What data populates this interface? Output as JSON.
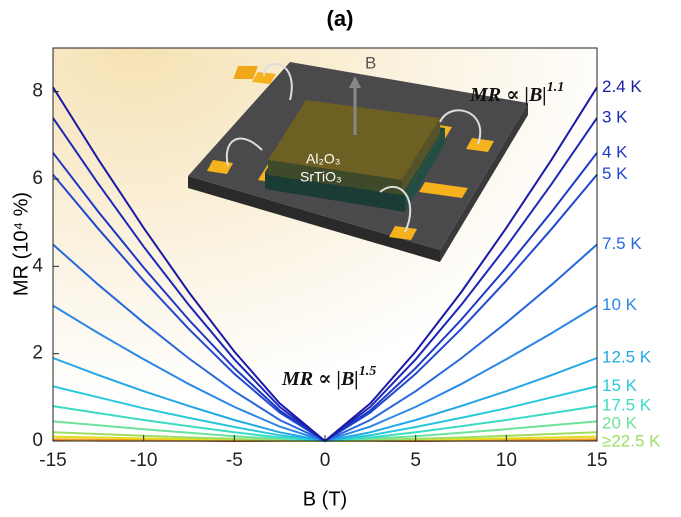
{
  "chart_data": {
    "type": "line",
    "title": "(a)",
    "xlabel": "B (T)",
    "ylabel": "MR (10⁴ %)",
    "x": [
      -15,
      -12.5,
      -10,
      -7.5,
      -5,
      -2.5,
      0,
      2.5,
      5,
      7.5,
      10,
      12.5,
      15
    ],
    "xlim": [
      -15,
      15
    ],
    "xticks": [
      -15,
      -10,
      -5,
      0,
      5,
      10,
      15
    ],
    "ylim": [
      0,
      9
    ],
    "yticks": [
      0,
      2,
      4,
      6,
      8
    ],
    "series": [
      {
        "name": "2.4 K",
        "color": "#1b1aa6",
        "values": [
          8.1,
          6.45,
          4.88,
          3.4,
          2.05,
          0.86,
          0,
          0.86,
          2.05,
          3.4,
          4.88,
          6.45,
          8.1
        ]
      },
      {
        "name": "3 K",
        "color": "#1c28b8",
        "values": [
          7.4,
          5.89,
          4.45,
          3.11,
          1.87,
          0.78,
          0,
          0.78,
          1.87,
          3.11,
          4.45,
          5.89,
          7.4
        ]
      },
      {
        "name": "4 K",
        "color": "#1e38c6",
        "values": [
          6.6,
          5.25,
          3.97,
          2.77,
          1.67,
          0.7,
          0,
          0.7,
          1.67,
          2.77,
          3.97,
          5.25,
          6.6
        ]
      },
      {
        "name": "5 K",
        "color": "#2148d0",
        "values": [
          6.1,
          4.86,
          3.67,
          2.56,
          1.54,
          0.65,
          0,
          0.65,
          1.54,
          2.56,
          3.67,
          4.86,
          6.1
        ]
      },
      {
        "name": "7.5 K",
        "color": "#2868dc",
        "values": [
          4.5,
          3.58,
          2.71,
          1.89,
          1.14,
          0.48,
          0,
          0.48,
          1.14,
          1.89,
          2.71,
          3.58,
          4.5
        ]
      },
      {
        "name": "10 K",
        "color": "#2c88e6",
        "values": [
          3.1,
          2.47,
          1.87,
          1.3,
          0.78,
          0.33,
          0,
          0.33,
          0.78,
          1.3,
          1.87,
          2.47,
          3.1
        ]
      },
      {
        "name": "12.5 K",
        "color": "#22a8e6",
        "values": [
          1.9,
          1.51,
          1.14,
          0.8,
          0.48,
          0.2,
          0,
          0.2,
          0.48,
          0.8,
          1.14,
          1.51,
          1.9
        ]
      },
      {
        "name": "15 K",
        "color": "#28c8dc",
        "values": [
          1.25,
          1.0,
          0.75,
          0.53,
          0.32,
          0.13,
          0,
          0.13,
          0.32,
          0.53,
          0.75,
          1.0,
          1.25
        ]
      },
      {
        "name": "17.5 K",
        "color": "#3cdcc4",
        "values": [
          0.8,
          0.64,
          0.48,
          0.34,
          0.2,
          0.08,
          0,
          0.08,
          0.2,
          0.34,
          0.48,
          0.64,
          0.8
        ]
      },
      {
        "name": "20 K",
        "color": "#6ee29c",
        "values": [
          0.45,
          0.36,
          0.27,
          0.19,
          0.11,
          0.05,
          0,
          0.05,
          0.11,
          0.19,
          0.27,
          0.36,
          0.45
        ]
      },
      {
        "name": "≥22.5 K",
        "color": "#9ede64",
        "values": [
          0.2,
          0.16,
          0.12,
          0.08,
          0.05,
          0.02,
          0,
          0.02,
          0.05,
          0.08,
          0.12,
          0.16,
          0.2
        ]
      },
      {
        "color": "#e6dc1e",
        "values": [
          0.1,
          0.08,
          0.06,
          0.04,
          0.03,
          0.01,
          0,
          0.01,
          0.03,
          0.04,
          0.06,
          0.08,
          0.1
        ]
      },
      {
        "color": "#f0a020",
        "values": [
          0.04,
          0.03,
          0.02,
          0.02,
          0.01,
          0,
          0,
          0,
          0.01,
          0.02,
          0.02,
          0.03,
          0.04
        ]
      },
      {
        "color": "#d42020",
        "values": [
          0.02,
          0.01,
          0.01,
          0.01,
          0,
          0,
          0,
          0,
          0,
          0.01,
          0.01,
          0.01,
          0.02
        ]
      }
    ],
    "annotations": [
      {
        "text": "MR ∝ |B|",
        "exponent": "1.1"
      },
      {
        "text": "MR ∝ |B|",
        "exponent": "1.5"
      }
    ],
    "inset_labels": {
      "field": "B",
      "top_layer": "Al₂O₃",
      "substrate": "SrTiO₃"
    }
  }
}
